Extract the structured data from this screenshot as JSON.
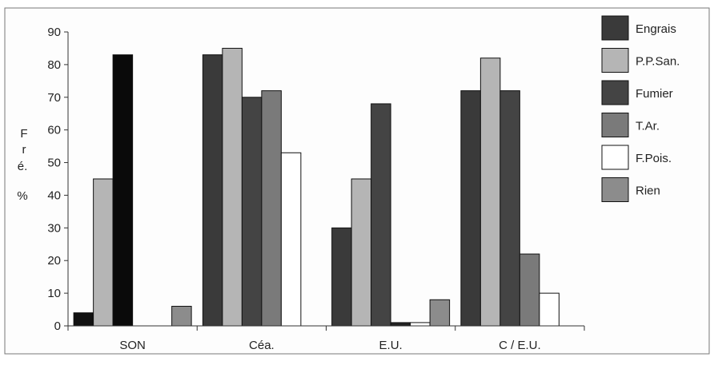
{
  "chart_data": {
    "type": "bar",
    "title": "",
    "xlabel": "",
    "ylabel": "F r é. %",
    "ylabel_lines": [
      "F",
      "r",
      "é.",
      "%"
    ],
    "ylim": [
      0,
      90
    ],
    "yticks": [
      0,
      10,
      20,
      30,
      40,
      50,
      60,
      70,
      80,
      90
    ],
    "grid": false,
    "legend_position": "right",
    "categories": [
      "SON",
      "Céa.",
      "E.U.",
      "C / E.U."
    ],
    "series": [
      {
        "name": "Engrais",
        "color": "#3a3a3a",
        "values": [
          4,
          83,
          30,
          72
        ]
      },
      {
        "name": "P.P.San.",
        "color": "#b5b5b5",
        "values": [
          45,
          85,
          45,
          82
        ]
      },
      {
        "name": "Fumier",
        "color": "#444444",
        "values": [
          83,
          70,
          68,
          72
        ]
      },
      {
        "name": "T.Ar.",
        "color": "#7a7a7a",
        "values": [
          0,
          72,
          1,
          22
        ]
      },
      {
        "name": "F.Pois.",
        "color": "#ffffff",
        "values": [
          0,
          53,
          1,
          10
        ]
      },
      {
        "name": "Rien",
        "color": "#8c8c8c",
        "values": [
          6,
          0,
          8,
          0
        ]
      }
    ],
    "bar_color_overrides": [
      {
        "series": 0,
        "category": 0,
        "color": "#111111"
      },
      {
        "series": 2,
        "category": 0,
        "color": "#0a0a0a"
      },
      {
        "series": 3,
        "category": 2,
        "color": "#222222"
      }
    ]
  }
}
